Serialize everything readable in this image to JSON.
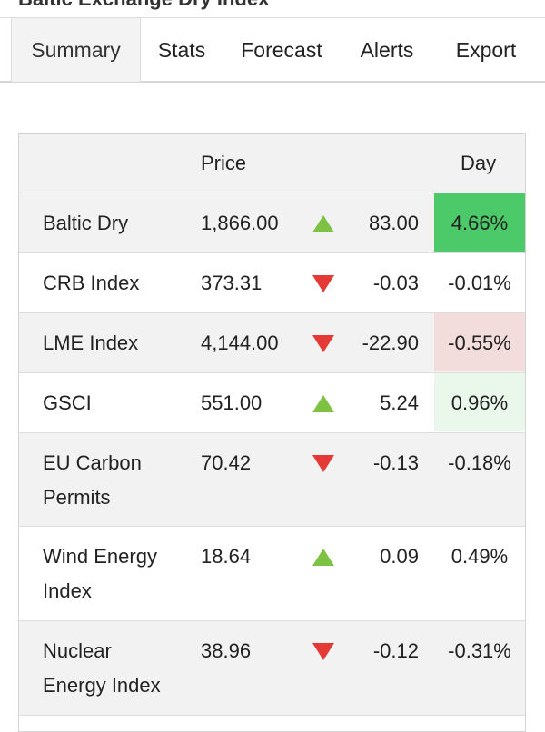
{
  "page": {
    "title": "Baltic Exchange Dry Index"
  },
  "tabs": [
    {
      "label": "Summary",
      "active": true
    },
    {
      "label": "Stats",
      "active": false
    },
    {
      "label": "Forecast",
      "active": false
    },
    {
      "label": "Alerts",
      "active": false
    },
    {
      "label": "Export",
      "active": false
    }
  ],
  "table": {
    "headers": {
      "price": "Price",
      "day": "Day"
    },
    "rows": [
      {
        "name": "Baltic Dry",
        "price": "1,866.00",
        "direction": "up",
        "change": "83.00",
        "pct": "4.66%",
        "pct_bg": "#4cca6a"
      },
      {
        "name": "CRB Index",
        "price": "373.31",
        "direction": "down",
        "change": "-0.03",
        "pct": "-0.01%",
        "pct_bg": ""
      },
      {
        "name": "LME Index",
        "price": "4,144.00",
        "direction": "down",
        "change": "-22.90",
        "pct": "-0.55%",
        "pct_bg": "#f3dcdc"
      },
      {
        "name": "GSCI",
        "price": "551.00",
        "direction": "up",
        "change": "5.24",
        "pct": "0.96%",
        "pct_bg": "#eaf8ec"
      },
      {
        "name": "EU Carbon Permits",
        "price": "70.42",
        "direction": "down",
        "change": "-0.13",
        "pct": "-0.18%",
        "pct_bg": ""
      },
      {
        "name": "Wind Energy Index",
        "price": "18.64",
        "direction": "up",
        "change": "0.09",
        "pct": "0.49%",
        "pct_bg": ""
      },
      {
        "name": "Nuclear Energy Index",
        "price": "38.96",
        "direction": "down",
        "change": "-0.12",
        "pct": "-0.31%",
        "pct_bg": ""
      }
    ]
  },
  "colors": {
    "up_arrow": "#7dc243",
    "down_arrow": "#e53935",
    "row_shade": "#f2f2f2"
  }
}
